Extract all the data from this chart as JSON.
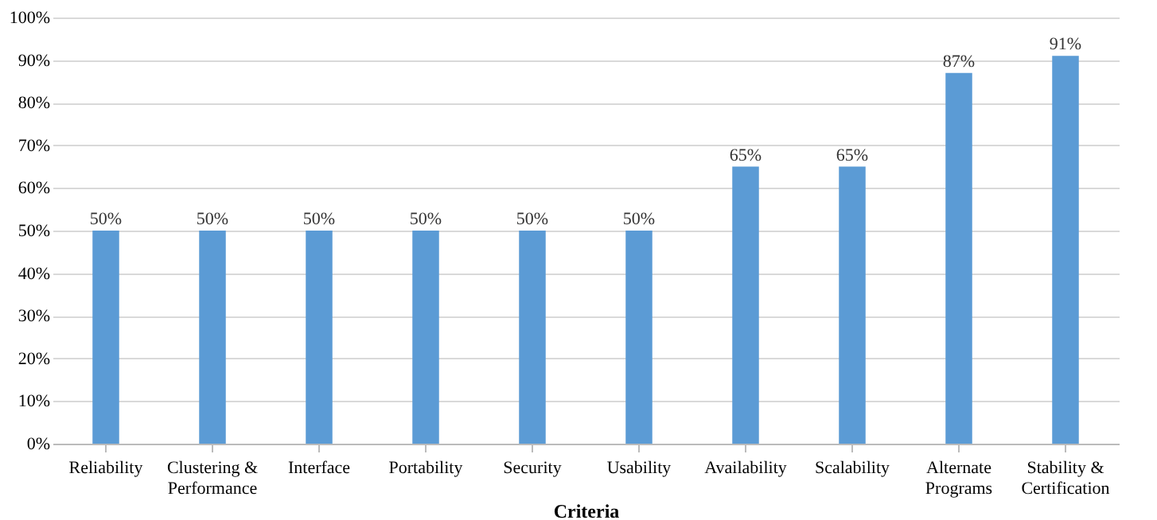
{
  "chart_data": {
    "type": "bar",
    "xlabel": "Criteria",
    "categories": [
      "Reliability",
      "Clustering & Performance",
      "Interface",
      "Portability",
      "Security",
      "Usability",
      "Availability",
      "Scalability",
      "Alternate Programs",
      "Stability & Certification"
    ],
    "values": [
      50,
      50,
      50,
      50,
      50,
      50,
      65,
      65,
      87,
      91
    ],
    "value_labels": [
      "50%",
      "50%",
      "50%",
      "50%",
      "50%",
      "50%",
      "65%",
      "65%",
      "87%",
      "91%"
    ],
    "color": "#5b9bd5",
    "ylim": [
      0,
      100
    ],
    "yticks": [
      {
        "value": 0,
        "label": "0%"
      },
      {
        "value": 10,
        "label": "10%"
      },
      {
        "value": 20,
        "label": "20%"
      },
      {
        "value": 30,
        "label": "30%"
      },
      {
        "value": 40,
        "label": "40%"
      },
      {
        "value": 50,
        "label": "50%"
      },
      {
        "value": 60,
        "label": "60%"
      },
      {
        "value": 70,
        "label": "70%"
      },
      {
        "value": 80,
        "label": "80%"
      },
      {
        "value": 90,
        "label": "90%"
      },
      {
        "value": 100,
        "label": "100%"
      }
    ],
    "grid": "y"
  }
}
